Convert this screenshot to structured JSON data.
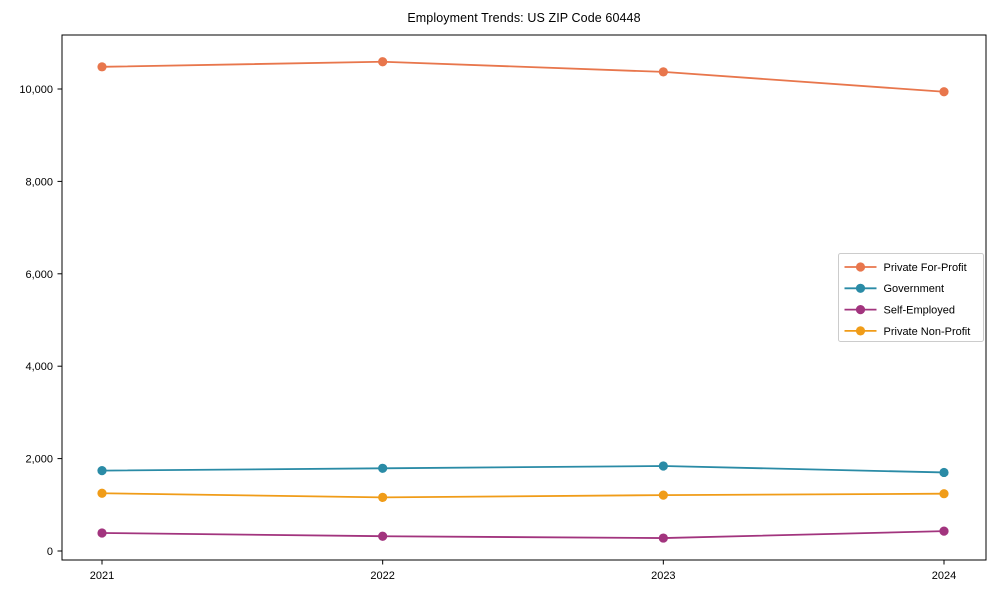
{
  "title": "Employment Trends: US ZIP Code 60448",
  "chart_data": {
    "type": "line",
    "title": "Employment Trends: US ZIP Code 60448",
    "x": [
      2021,
      2022,
      2023,
      2024
    ],
    "xtick_labels": [
      "2021",
      "2022",
      "2023",
      "2024"
    ],
    "yticks": [
      0,
      2000,
      4000,
      6000,
      8000,
      10000
    ],
    "ytick_labels": [
      "0",
      "2,000",
      "4,000",
      "6,000",
      "8,000",
      "10,000"
    ],
    "ylim": [
      0,
      11150
    ],
    "grid": false,
    "legend_position": "center-right",
    "marker": "circle",
    "series": [
      {
        "name": "Private For-Profit",
        "color": "#E8764C",
        "values": [
          10480,
          10590,
          10370,
          9940
        ]
      },
      {
        "name": "Government",
        "color": "#2A8BA6",
        "values": [
          1740,
          1790,
          1840,
          1700
        ]
      },
      {
        "name": "Self-Employed",
        "color": "#A2347E",
        "values": [
          390,
          320,
          280,
          430
        ]
      },
      {
        "name": "Private Non-Profit",
        "color": "#F09C18",
        "values": [
          1250,
          1160,
          1210,
          1240
        ]
      }
    ]
  }
}
